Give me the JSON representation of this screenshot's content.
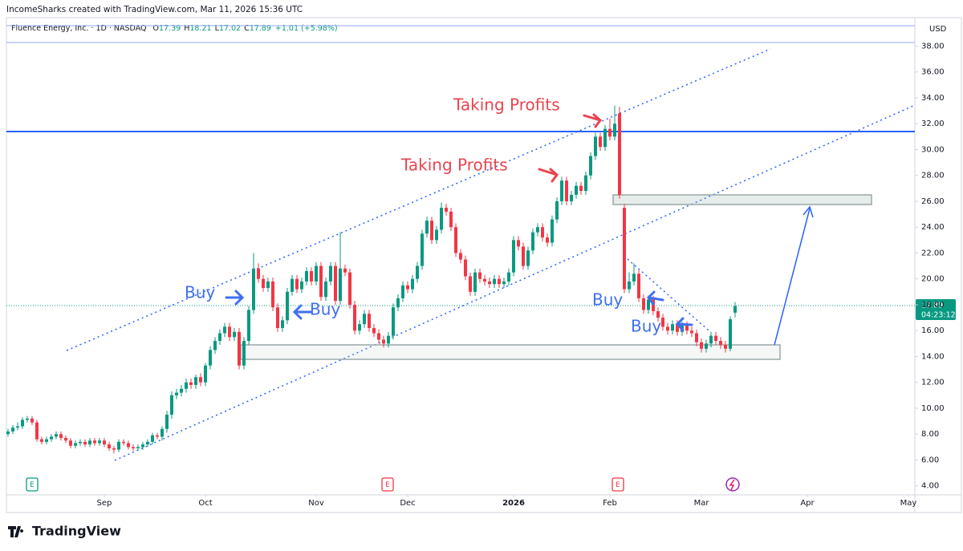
{
  "attribution": "IncomeSharks created with TradingView.com, Mar 11, 2026 15:36 UTC",
  "header": {
    "symbol": "Fluence Energy, Inc. · 1D · NASDAQ",
    "ohlc_labels": [
      "O",
      "H",
      "L",
      "C"
    ],
    "change": "+1.01 (+5.98%)"
  },
  "logo": "TradingView",
  "chart_data": {
    "type": "candlestick",
    "currency": "USD",
    "countdown": "04:23:12",
    "grid": false,
    "up_color": "#089981",
    "down_color": "#f23645",
    "annotations": [
      "Taking Profits",
      "Taking Profits",
      "Buy",
      "Buy",
      "Buy",
      "Buy"
    ],
    "events": [
      "E",
      "E",
      "E"
    ],
    "xlim": [
      -0.33,
      188.33
    ],
    "xticks": [
      {
        "value": 20,
        "label": "Sep"
      },
      {
        "value": 41,
        "label": "Oct"
      },
      {
        "value": 64,
        "label": "Nov"
      },
      {
        "value": 83,
        "label": "Dec"
      },
      {
        "value": 105,
        "label": "2026"
      },
      {
        "value": 125,
        "label": "Feb"
      },
      {
        "value": 144,
        "label": "Mar"
      },
      {
        "value": 166,
        "label": "Apr"
      },
      {
        "value": 187,
        "label": "May"
      }
    ],
    "ylim": [
      3.3,
      40.2
    ],
    "yticks": [
      {
        "value": 4,
        "label": "4.00"
      },
      {
        "value": 6,
        "label": "6.00"
      },
      {
        "value": 8,
        "label": "8.00"
      },
      {
        "value": 10,
        "label": "10.00"
      },
      {
        "value": 12,
        "label": "12.00"
      },
      {
        "value": 14,
        "label": "14.00"
      },
      {
        "value": 16,
        "label": "16.00"
      },
      {
        "value": 18,
        "label": "18.00"
      },
      {
        "value": 20,
        "label": "20.00"
      },
      {
        "value": 22,
        "label": "22.00"
      },
      {
        "value": 24,
        "label": "24.00"
      },
      {
        "value": 26,
        "label": "26.00"
      },
      {
        "value": 28,
        "label": "28.00"
      },
      {
        "value": 30,
        "label": "30.00"
      },
      {
        "value": 32,
        "label": "32.00"
      },
      {
        "value": 34,
        "label": "34.00"
      },
      {
        "value": 36,
        "label": "36.00"
      },
      {
        "value": 38,
        "label": "38.00"
      }
    ],
    "open": [
      8.0,
      8.2,
      8.5,
      8.6,
      9.1,
      9.2,
      8.9,
      7.6,
      7.4,
      7.6,
      7.8,
      8.0,
      7.7,
      7.5,
      7.1,
      7.3,
      7.4,
      7.2,
      7.5,
      7.3,
      7.5,
      7.2,
      6.9,
      6.8,
      7.4,
      7.3,
      7.0,
      6.9,
      7.0,
      7.2,
      7.4,
      7.9,
      7.8,
      8.4,
      9.5,
      11.0,
      11.2,
      11.5,
      12.0,
      11.8,
      12.4,
      12.0,
      13.3,
      14.5,
      15.2,
      15.8,
      16.3,
      15.5,
      15.9,
      13.3,
      15.2,
      17.6,
      20.8,
      20.0,
      19.3,
      19.8,
      17.8,
      16.2,
      16.8,
      19.0,
      20.0,
      19.2,
      19.8,
      20.6,
      19.8,
      21.0,
      18.6,
      19.8,
      21.0,
      18.3,
      20.8,
      20.5,
      18.0,
      16.0,
      16.5,
      17.3,
      16.2,
      15.8,
      15.3,
      15.0,
      15.6,
      17.8,
      18.5,
      19.5,
      19.2,
      20.0,
      21.0,
      23.5,
      24.5,
      23.0,
      23.8,
      25.5,
      25.2,
      24.0,
      22.0,
      21.5,
      20.2,
      19.0,
      20.5,
      20.0,
      19.8,
      19.6,
      20.0,
      19.6,
      19.8,
      20.5,
      23.0,
      22.5,
      21.0,
      22.2,
      23.6,
      24.0,
      23.2,
      22.8,
      24.6,
      26.0,
      27.6,
      26.0,
      26.5,
      27.2,
      26.8,
      28.0,
      29.5,
      31.0,
      30.2,
      31.6,
      31.0,
      32.8,
      25.5,
      19.2,
      19.8,
      20.4,
      18.5,
      17.6,
      18.4,
      17.5,
      17.0,
      16.3,
      16.0,
      16.5,
      15.9,
      16.4,
      16.0,
      15.8,
      15.1,
      14.6,
      15.0,
      15.6,
      15.2,
      14.9,
      14.6,
      17.39
    ],
    "high": [
      8.4,
      8.7,
      8.9,
      9.3,
      9.4,
      9.4,
      9.1,
      7.8,
      7.8,
      8.0,
      8.2,
      8.2,
      7.9,
      7.7,
      7.5,
      7.6,
      7.6,
      7.7,
      7.7,
      7.7,
      7.7,
      7.4,
      7.1,
      7.6,
      7.6,
      7.5,
      7.2,
      7.2,
      7.4,
      7.6,
      8.1,
      8.1,
      8.6,
      9.8,
      11.3,
      11.5,
      11.8,
      12.3,
      12.3,
      12.6,
      12.7,
      13.5,
      14.8,
      15.5,
      16.1,
      16.6,
      16.6,
      16.2,
      16.2,
      15.5,
      17.9,
      22.0,
      21.2,
      20.3,
      20.1,
      20.1,
      18.1,
      17.1,
      19.3,
      20.3,
      20.3,
      20.1,
      20.9,
      20.9,
      21.3,
      21.3,
      20.1,
      21.3,
      21.3,
      23.6,
      21.1,
      20.8,
      18.3,
      16.8,
      17.6,
      17.6,
      16.5,
      16.1,
      15.6,
      15.9,
      18.1,
      18.8,
      19.8,
      19.8,
      20.3,
      21.3,
      23.8,
      24.8,
      24.8,
      24.1,
      25.9,
      25.8,
      25.5,
      24.3,
      22.3,
      21.8,
      20.5,
      20.8,
      20.8,
      20.3,
      20.1,
      20.3,
      20.3,
      20.1,
      20.8,
      23.3,
      23.3,
      22.8,
      22.5,
      23.9,
      24.3,
      24.3,
      23.5,
      24.9,
      26.3,
      27.9,
      27.9,
      26.8,
      27.5,
      27.5,
      28.3,
      29.8,
      31.3,
      31.3,
      31.9,
      32.4,
      33.4,
      33.3,
      25.8,
      20.5,
      21.2,
      20.7,
      18.8,
      18.7,
      18.7,
      17.8,
      17.3,
      16.6,
      16.8,
      16.8,
      16.7,
      16.7,
      16.3,
      16.1,
      15.4,
      15.3,
      15.9,
      15.9,
      15.5,
      15.2,
      17.1,
      18.21
    ],
    "low": [
      7.8,
      8.0,
      8.3,
      8.4,
      8.9,
      8.7,
      7.4,
      7.2,
      7.2,
      7.4,
      7.6,
      7.5,
      7.3,
      6.9,
      6.9,
      7.1,
      7.0,
      7.0,
      7.1,
      7.1,
      7.0,
      6.7,
      6.5,
      6.6,
      7.1,
      6.8,
      6.7,
      6.7,
      6.8,
      7.0,
      7.2,
      7.6,
      7.5,
      8.1,
      9.2,
      10.7,
      10.9,
      11.2,
      11.5,
      11.5,
      11.7,
      11.7,
      13.0,
      14.2,
      14.9,
      15.5,
      15.2,
      15.2,
      13.0,
      13.0,
      14.9,
      17.3,
      19.7,
      19.0,
      19.0,
      17.5,
      15.9,
      15.9,
      16.5,
      18.7,
      18.9,
      18.9,
      19.5,
      19.5,
      19.5,
      18.3,
      18.3,
      19.5,
      18.0,
      18.0,
      20.2,
      17.7,
      15.7,
      15.7,
      16.2,
      15.9,
      15.5,
      15.0,
      14.7,
      14.7,
      15.3,
      17.5,
      18.2,
      18.9,
      18.9,
      19.7,
      20.7,
      23.2,
      22.7,
      22.7,
      23.5,
      24.9,
      23.7,
      21.7,
      21.2,
      19.9,
      18.7,
      18.7,
      19.7,
      19.5,
      19.3,
      19.3,
      19.3,
      19.3,
      19.5,
      20.2,
      22.2,
      20.7,
      20.7,
      21.9,
      23.3,
      22.9,
      22.5,
      22.5,
      24.3,
      25.7,
      25.7,
      25.7,
      26.2,
      26.5,
      26.5,
      27.7,
      29.2,
      29.9,
      29.9,
      30.7,
      30.7,
      26.2,
      18.9,
      18.9,
      19.5,
      18.2,
      17.3,
      17.3,
      17.2,
      16.7,
      16.0,
      15.7,
      15.7,
      15.6,
      15.6,
      15.7,
      15.5,
      14.8,
      14.3,
      14.3,
      14.7,
      14.9,
      14.6,
      14.3,
      14.4,
      17.02
    ],
    "close": [
      8.2,
      8.5,
      8.6,
      9.1,
      9.2,
      8.9,
      7.6,
      7.4,
      7.6,
      7.8,
      8.0,
      7.7,
      7.5,
      7.1,
      7.3,
      7.4,
      7.2,
      7.5,
      7.3,
      7.5,
      7.2,
      6.9,
      6.8,
      7.4,
      7.3,
      7.0,
      6.9,
      7.0,
      7.2,
      7.4,
      7.9,
      7.8,
      8.4,
      9.5,
      11.0,
      11.2,
      11.5,
      12.0,
      11.8,
      12.4,
      12.0,
      13.3,
      14.5,
      15.2,
      15.8,
      16.3,
      15.5,
      15.9,
      13.3,
      15.2,
      17.6,
      20.8,
      20.0,
      19.3,
      19.8,
      17.8,
      16.2,
      16.8,
      19.0,
      20.0,
      19.2,
      19.8,
      20.6,
      19.8,
      21.0,
      18.6,
      19.8,
      21.0,
      18.3,
      20.8,
      20.5,
      18.0,
      16.0,
      16.5,
      17.3,
      16.2,
      15.8,
      15.3,
      15.0,
      15.6,
      17.8,
      18.5,
      19.5,
      19.2,
      20.0,
      21.0,
      23.5,
      24.5,
      23.0,
      23.8,
      25.5,
      25.2,
      24.0,
      22.0,
      21.5,
      20.2,
      19.0,
      20.5,
      20.0,
      19.8,
      19.6,
      20.0,
      19.6,
      19.8,
      20.5,
      23.0,
      22.5,
      21.0,
      22.2,
      23.6,
      24.0,
      23.2,
      22.8,
      24.6,
      26.0,
      27.6,
      26.0,
      26.5,
      27.2,
      26.8,
      28.0,
      29.5,
      31.0,
      30.2,
      31.6,
      31.0,
      32.0,
      26.5,
      19.2,
      19.8,
      20.4,
      18.5,
      17.6,
      18.4,
      17.5,
      17.0,
      16.3,
      16.0,
      16.5,
      15.9,
      16.4,
      16.0,
      15.8,
      15.1,
      14.6,
      15.0,
      15.6,
      15.2,
      14.9,
      14.6,
      16.88,
      17.89
    ]
  }
}
